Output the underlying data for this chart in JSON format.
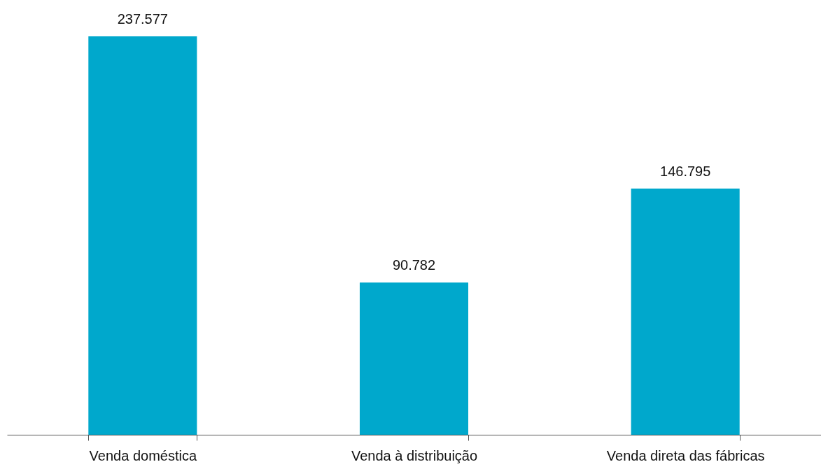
{
  "chart_data": {
    "type": "bar",
    "categories": [
      "Venda doméstica",
      "Venda à distribuição",
      "Venda direta das fábricas"
    ],
    "values": [
      237577,
      90782,
      146795
    ],
    "value_labels": [
      "237.577",
      "90.782",
      "146.795"
    ],
    "color": "#00a8cc"
  }
}
